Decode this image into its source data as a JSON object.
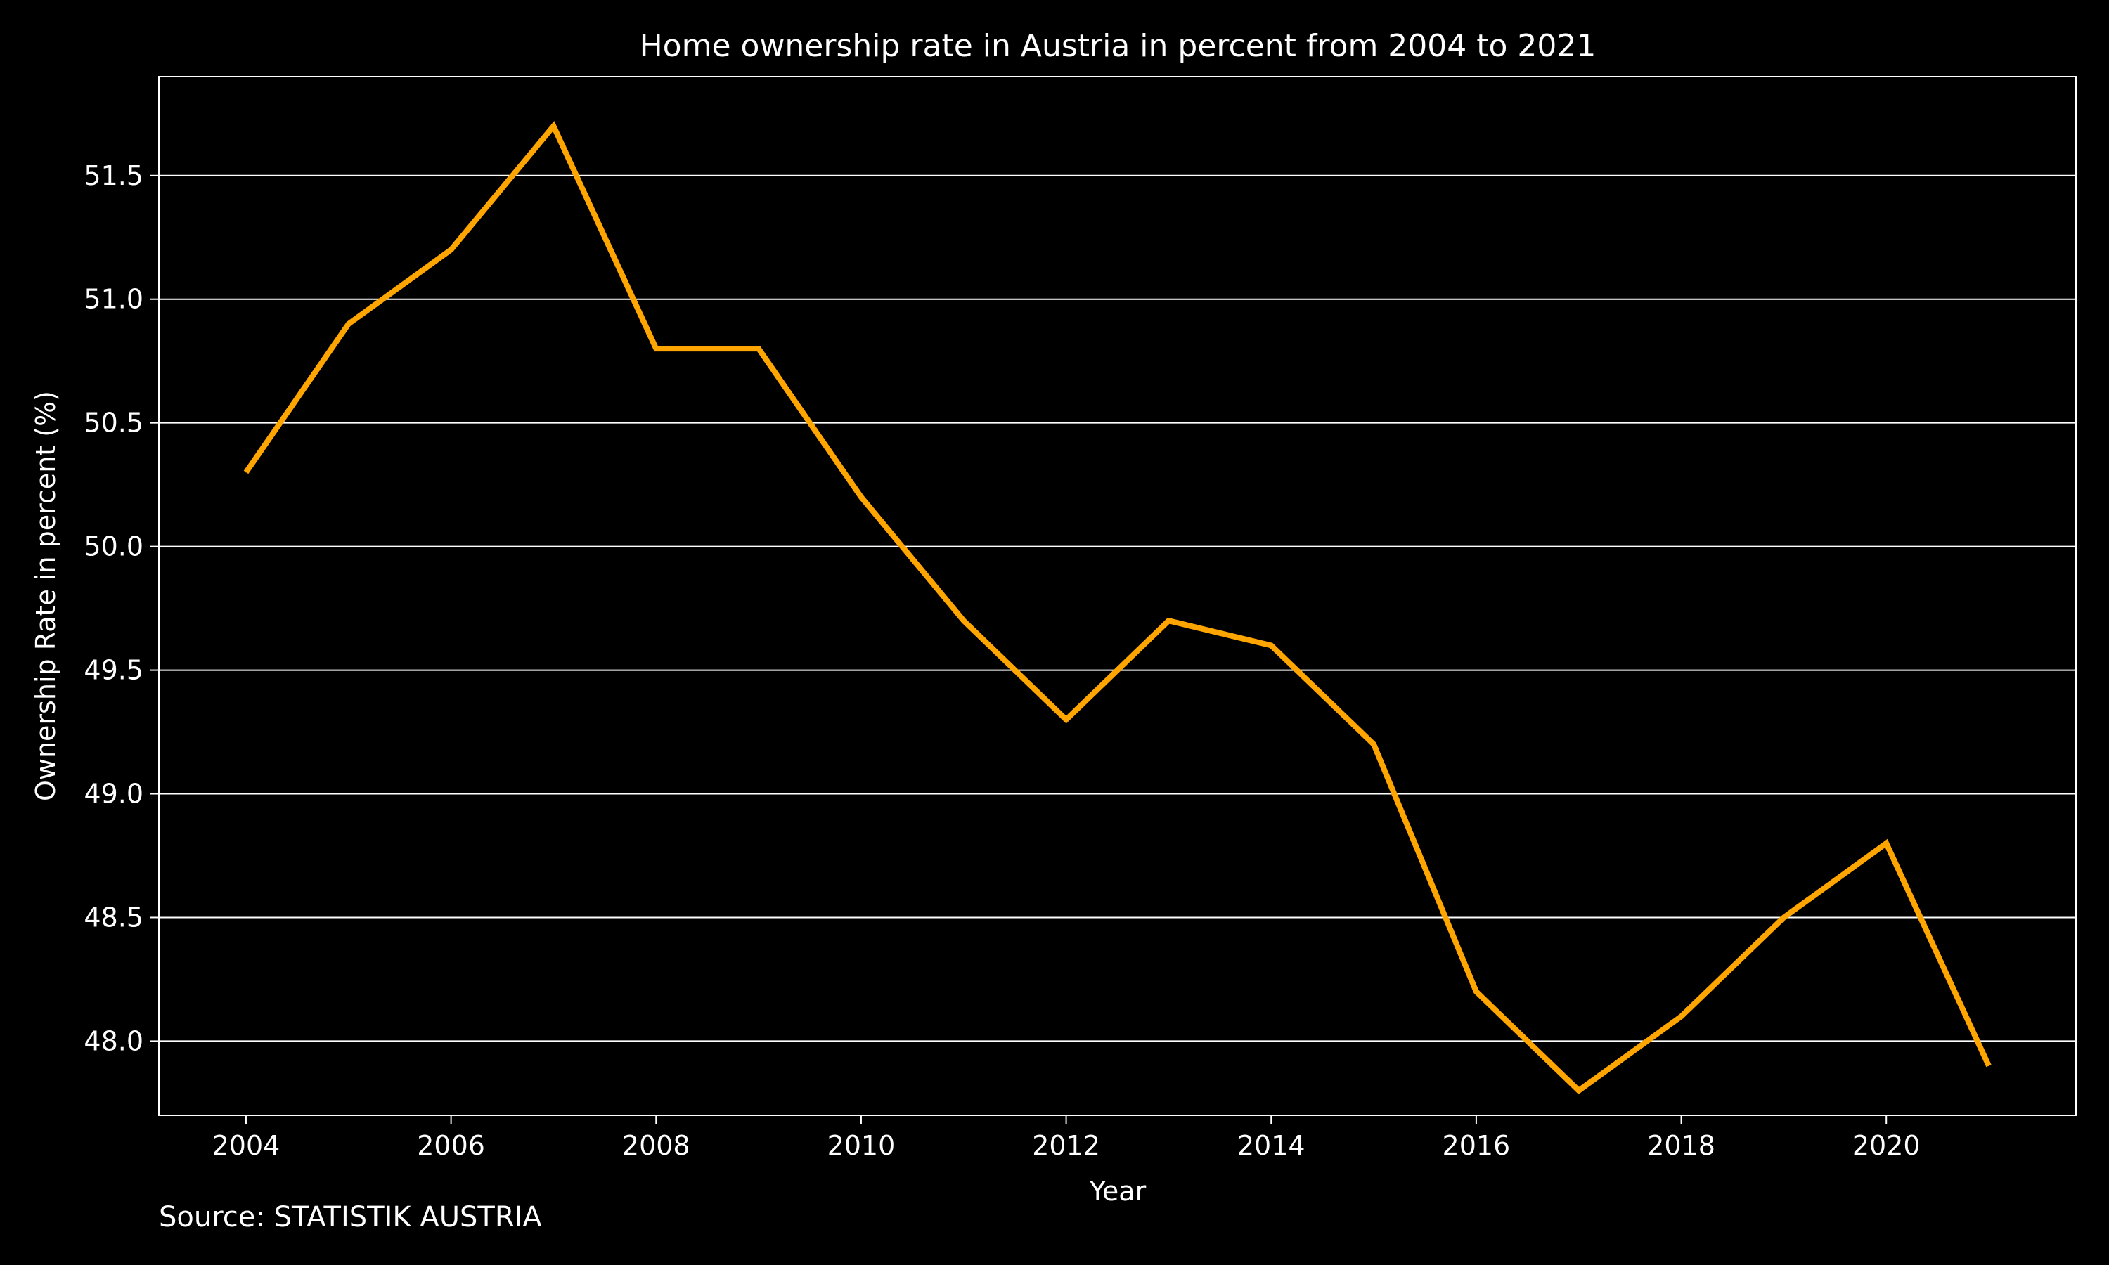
{
  "chart_data": {
    "type": "line",
    "title": "Home ownership rate in Austria in percent from 2004 to 2021",
    "xlabel": "Year",
    "ylabel": "Ownership Rate in percent (%)",
    "x": [
      2004,
      2005,
      2006,
      2007,
      2008,
      2009,
      2010,
      2011,
      2012,
      2013,
      2014,
      2015,
      2016,
      2017,
      2018,
      2019,
      2020,
      2021
    ],
    "series": [
      {
        "values": [
          50.3,
          50.9,
          51.2,
          51.7,
          50.8,
          50.8,
          50.2,
          49.7,
          49.3,
          49.7,
          49.6,
          49.2,
          48.2,
          47.8,
          48.1,
          48.5,
          48.8,
          47.9
        ],
        "color": "#FFA500"
      }
    ],
    "xticks": [
      "2004",
      "2006",
      "2008",
      "2010",
      "2012",
      "2014",
      "2016",
      "2018",
      "2020"
    ],
    "yticks": [
      "48.0",
      "48.5",
      "49.0",
      "49.5",
      "50.0",
      "50.5",
      "51.0",
      "51.5"
    ],
    "xlim": [
      2003.15,
      2021.85
    ],
    "ylim": [
      47.7,
      51.9
    ],
    "grid": "horizontal",
    "legend": "none",
    "background_color": "#000000",
    "text_color": "#FFFFFF"
  },
  "source_note": "Source: STATISTIK AUSTRIA"
}
